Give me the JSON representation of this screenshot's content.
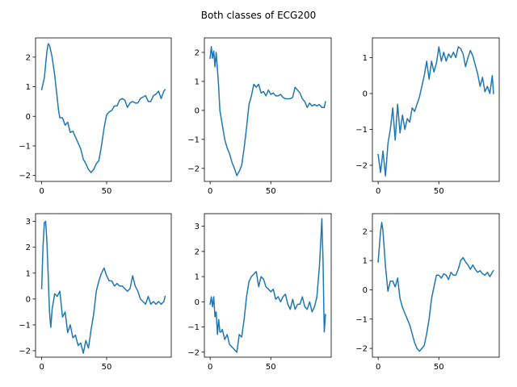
{
  "title": "Both classes of ECG200",
  "series_color": "#1f77b4",
  "chart_data": [
    {
      "type": "line",
      "xlim": [
        -4.75,
        99.75
      ],
      "ylim": [
        -2.2,
        2.65
      ],
      "xticks": [
        0,
        50
      ],
      "yticks": [
        -2,
        -1,
        0,
        1,
        2
      ],
      "x": [
        0,
        2,
        4,
        5,
        6,
        8,
        10,
        12,
        13,
        14,
        16,
        18,
        20,
        22,
        24,
        26,
        28,
        30,
        32,
        34,
        36,
        38,
        40,
        42,
        44,
        46,
        48,
        50,
        52,
        54,
        56,
        58,
        60,
        62,
        64,
        66,
        68,
        70,
        72,
        74,
        76,
        78,
        80,
        82,
        84,
        86,
        88,
        90,
        92,
        94,
        95
      ],
      "y": [
        0.9,
        1.3,
        2.2,
        2.45,
        2.4,
        2.0,
        1.4,
        0.6,
        0.2,
        -0.05,
        -0.05,
        -0.3,
        -0.2,
        -0.55,
        -0.5,
        -0.7,
        -0.9,
        -1.1,
        -1.45,
        -1.6,
        -1.8,
        -1.9,
        -1.8,
        -1.6,
        -1.5,
        -1.0,
        -0.4,
        0.05,
        0.15,
        0.2,
        0.35,
        0.35,
        0.55,
        0.6,
        0.55,
        0.3,
        0.45,
        0.5,
        0.45,
        0.45,
        0.6,
        0.65,
        0.7,
        0.5,
        0.5,
        0.7,
        0.75,
        0.85,
        0.6,
        0.85,
        0.9
      ]
    },
    {
      "type": "line",
      "xlim": [
        -4.75,
        99.75
      ],
      "ylim": [
        -2.45,
        2.5
      ],
      "xticks": [
        0,
        50
      ],
      "yticks": [
        -2,
        -1,
        0,
        1,
        2
      ],
      "x": [
        0,
        1,
        2,
        3,
        4,
        5,
        6,
        7,
        8,
        10,
        12,
        14,
        16,
        18,
        20,
        22,
        24,
        26,
        28,
        30,
        32,
        34,
        36,
        38,
        40,
        42,
        44,
        46,
        48,
        50,
        52,
        54,
        56,
        58,
        60,
        62,
        64,
        66,
        68,
        70,
        72,
        74,
        76,
        78,
        80,
        82,
        84,
        86,
        88,
        90,
        92,
        94,
        95
      ],
      "y": [
        1.8,
        2.2,
        1.8,
        2.05,
        1.5,
        2.0,
        1.4,
        0.8,
        0.0,
        -0.5,
        -1.0,
        -1.3,
        -1.5,
        -1.8,
        -2.0,
        -2.25,
        -2.1,
        -1.9,
        -1.3,
        -0.6,
        0.2,
        0.5,
        0.9,
        0.8,
        0.9,
        0.6,
        0.65,
        0.5,
        0.7,
        0.55,
        0.6,
        0.5,
        0.5,
        0.55,
        0.45,
        0.4,
        0.4,
        0.4,
        0.45,
        0.8,
        0.7,
        0.6,
        0.4,
        0.3,
        0.1,
        0.25,
        0.15,
        0.2,
        0.15,
        0.2,
        0.1,
        0.1,
        0.3
      ]
    },
    {
      "type": "line",
      "xlim": [
        -4.75,
        99.75
      ],
      "ylim": [
        -2.45,
        1.55
      ],
      "xticks": [
        0,
        50
      ],
      "yticks": [
        -2,
        -1,
        0,
        1
      ],
      "x": [
        0,
        2,
        4,
        6,
        8,
        10,
        12,
        14,
        16,
        18,
        20,
        22,
        24,
        26,
        28,
        30,
        32,
        34,
        36,
        38,
        40,
        42,
        44,
        46,
        48,
        50,
        52,
        54,
        56,
        58,
        60,
        62,
        64,
        66,
        68,
        70,
        72,
        74,
        76,
        78,
        80,
        82,
        84,
        86,
        88,
        90,
        92,
        94,
        95
      ],
      "y": [
        -1.7,
        -2.2,
        -1.6,
        -2.3,
        -1.4,
        -1.0,
        -0.4,
        -1.3,
        -0.3,
        -1.1,
        -0.6,
        -1.0,
        -0.7,
        -0.8,
        -0.4,
        -0.5,
        -0.3,
        -0.1,
        0.2,
        0.5,
        0.9,
        0.4,
        0.9,
        0.6,
        0.85,
        1.3,
        0.9,
        1.15,
        0.9,
        1.1,
        1.0,
        1.15,
        1.0,
        1.3,
        1.25,
        1.1,
        0.75,
        1.0,
        1.2,
        1.05,
        0.8,
        0.55,
        0.2,
        0.45,
        0.05,
        0.2,
        0.0,
        0.5,
        0.0
      ]
    },
    {
      "type": "line",
      "xlim": [
        -4.75,
        99.75
      ],
      "ylim": [
        -2.25,
        3.3
      ],
      "xticks": [
        0,
        50
      ],
      "yticks": [
        -2,
        -1,
        0,
        1,
        2,
        3
      ],
      "x": [
        0,
        1,
        2,
        3,
        4,
        5,
        6,
        7,
        8,
        10,
        12,
        14,
        16,
        18,
        20,
        22,
        24,
        26,
        28,
        30,
        32,
        34,
        36,
        38,
        40,
        42,
        44,
        46,
        48,
        50,
        52,
        54,
        56,
        58,
        60,
        62,
        64,
        66,
        68,
        70,
        72,
        74,
        76,
        78,
        80,
        82,
        84,
        86,
        88,
        90,
        92,
        94,
        95
      ],
      "y": [
        0.4,
        2.0,
        2.95,
        3.0,
        2.2,
        0.9,
        -0.5,
        -1.1,
        -0.4,
        0.2,
        0.1,
        0.3,
        -0.7,
        -0.5,
        -1.3,
        -1.0,
        -1.5,
        -1.4,
        -1.8,
        -1.7,
        -2.1,
        -1.6,
        -1.9,
        -1.2,
        -0.6,
        0.3,
        0.7,
        1.0,
        1.2,
        0.9,
        0.7,
        0.7,
        0.5,
        0.6,
        0.5,
        0.5,
        0.4,
        0.3,
        0.4,
        0.9,
        0.5,
        0.3,
        0.0,
        -0.1,
        -0.2,
        0.1,
        -0.2,
        -0.1,
        -0.2,
        -0.1,
        -0.2,
        -0.1,
        0.1
      ]
    },
    {
      "type": "line",
      "xlim": [
        -4.75,
        99.75
      ],
      "ylim": [
        -2.2,
        3.5
      ],
      "xticks": [
        0,
        50
      ],
      "yticks": [
        -2,
        -1,
        0,
        1,
        2,
        3
      ],
      "x": [
        0,
        1,
        2,
        3,
        4,
        5,
        6,
        7,
        8,
        9,
        10,
        12,
        14,
        16,
        18,
        20,
        22,
        24,
        26,
        28,
        30,
        32,
        34,
        36,
        38,
        40,
        42,
        44,
        46,
        48,
        50,
        52,
        54,
        56,
        58,
        60,
        62,
        64,
        66,
        68,
        70,
        72,
        74,
        76,
        78,
        80,
        82,
        84,
        86,
        88,
        90,
        91,
        92,
        93,
        94,
        95
      ],
      "y": [
        -0.1,
        0.2,
        -0.2,
        0.2,
        -0.6,
        -0.4,
        -1.3,
        -0.7,
        -1.2,
        -1.2,
        -1.1,
        -1.5,
        -1.3,
        -1.7,
        -1.8,
        -1.9,
        -2.0,
        -1.3,
        -1.4,
        -0.7,
        0.2,
        0.8,
        1.0,
        1.1,
        1.2,
        0.6,
        1.0,
        0.9,
        0.6,
        0.5,
        0.4,
        0.5,
        0.1,
        0.2,
        0.0,
        0.2,
        0.3,
        -0.1,
        -0.3,
        0.1,
        -0.3,
        -0.1,
        -0.1,
        0.2,
        -0.2,
        -0.3,
        0.0,
        -0.4,
        -0.2,
        0.2,
        1.4,
        2.3,
        3.3,
        1.6,
        -1.2,
        -0.5
      ]
    },
    {
      "type": "line",
      "xlim": [
        -4.75,
        99.75
      ],
      "ylim": [
        -2.3,
        2.6
      ],
      "xticks": [
        0,
        50
      ],
      "yticks": [
        -2,
        -1,
        0,
        1,
        2
      ],
      "x": [
        0,
        2,
        3,
        4,
        6,
        8,
        10,
        12,
        14,
        16,
        18,
        20,
        22,
        24,
        26,
        28,
        30,
        32,
        34,
        36,
        38,
        40,
        42,
        44,
        46,
        48,
        50,
        52,
        54,
        56,
        58,
        60,
        62,
        64,
        66,
        68,
        70,
        72,
        74,
        76,
        78,
        80,
        82,
        84,
        86,
        88,
        90,
        92,
        94,
        95
      ],
      "y": [
        0.95,
        2.0,
        2.3,
        2.0,
        0.8,
        -0.05,
        0.3,
        0.3,
        0.1,
        0.4,
        -0.3,
        -0.6,
        -0.8,
        -1.0,
        -1.2,
        -1.5,
        -1.8,
        -2.0,
        -2.1,
        -2.0,
        -1.9,
        -1.5,
        -1.0,
        -0.3,
        0.1,
        0.5,
        0.5,
        0.4,
        0.55,
        0.5,
        0.35,
        0.6,
        0.5,
        0.5,
        0.7,
        1.0,
        1.1,
        0.95,
        0.85,
        0.7,
        0.85,
        0.7,
        0.6,
        0.65,
        0.55,
        0.5,
        0.6,
        0.45,
        0.6,
        0.65
      ]
    }
  ]
}
